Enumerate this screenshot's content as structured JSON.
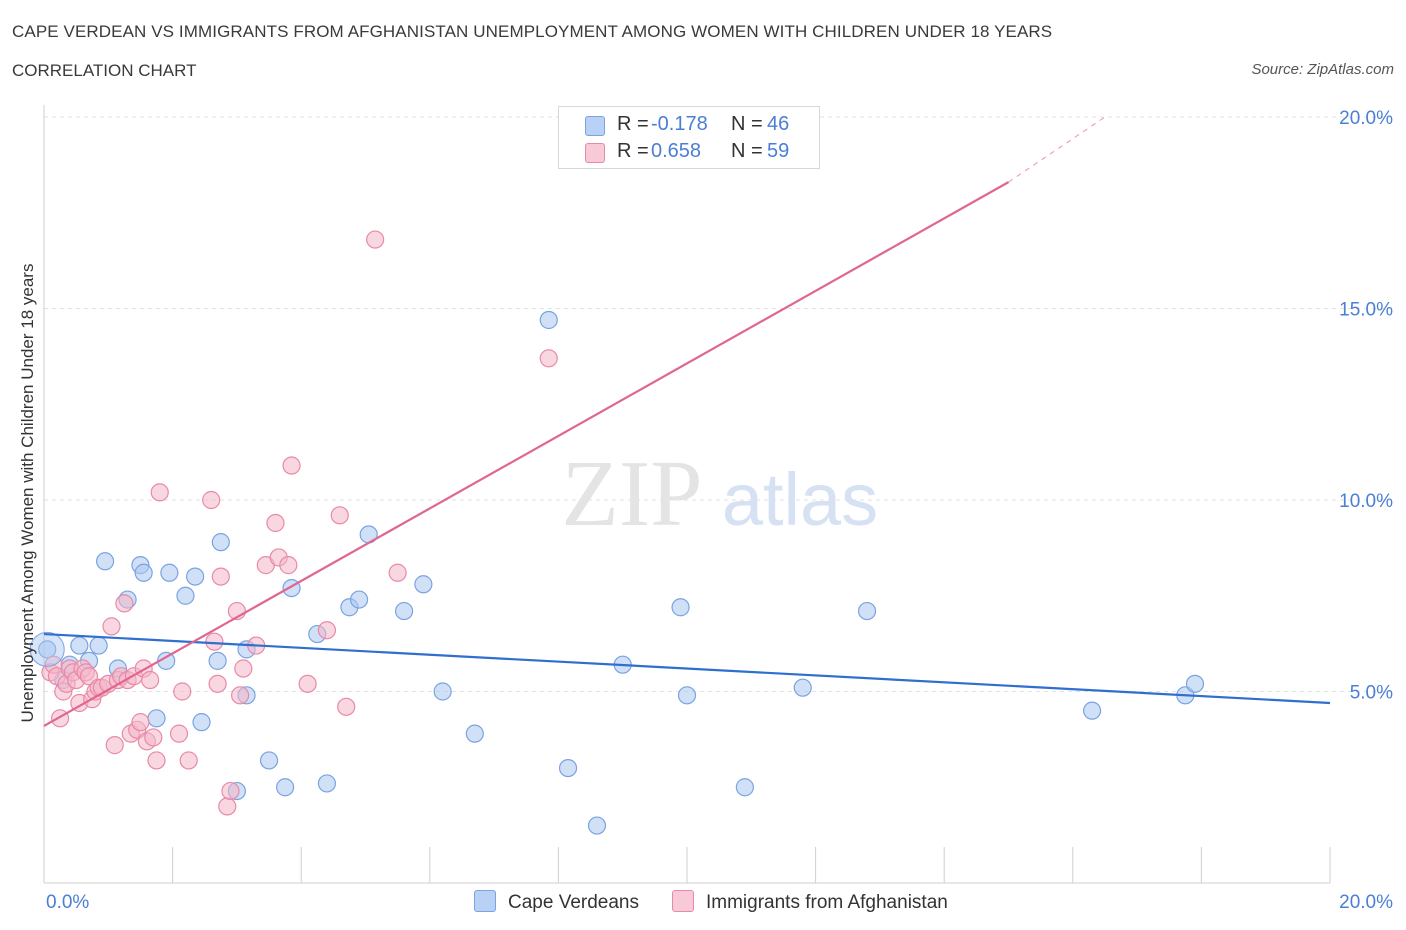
{
  "title": "CAPE VERDEAN VS IMMIGRANTS FROM AFGHANISTAN UNEMPLOYMENT AMONG WOMEN WITH CHILDREN UNDER 18 YEARS",
  "subtitle": "CORRELATION CHART",
  "source": "Source: ZipAtlas.com",
  "watermark": {
    "zip": "ZIP",
    "atlas": "atlas"
  },
  "legend": {
    "rows": [
      {
        "r_label": "R =",
        "r_value": "-0.178",
        "n_label": "N =",
        "n_value": "46"
      },
      {
        "r_label": "R =",
        "r_value": "0.658",
        "n_label": "N =",
        "n_value": "59"
      }
    ]
  },
  "bottom_legend": {
    "series1": "Cape Verdeans",
    "series2": "Immigrants from Afghanistan"
  },
  "colors": {
    "blue_fill": "#a9c6f0",
    "blue_stroke": "#7aa3e0",
    "blue_line": "#2f6fcf",
    "pink_fill": "#f4b6c8",
    "pink_stroke": "#e88aa7",
    "pink_line": "#e0668f",
    "axis_text": "#4a7fd4",
    "grid": "#e2e2e2"
  },
  "chart_data": {
    "type": "scatter",
    "title": "CAPE VERDEAN VS IMMIGRANTS FROM AFGHANISTAN UNEMPLOYMENT AMONG WOMEN WITH CHILDREN UNDER 18 YEARS",
    "xlabel": "",
    "ylabel": "Unemployment Among Women with Children Under 18 years",
    "xlim": [
      0,
      20
    ],
    "ylim": [
      0,
      20
    ],
    "x_tick_labels": [
      "0.0%",
      "20.0%"
    ],
    "y_ticks": [
      5,
      10,
      15,
      20
    ],
    "y_tick_labels": [
      "5.0%",
      "10.0%",
      "15.0%",
      "20.0%"
    ],
    "grid": true,
    "legend_position": "top-center",
    "series": [
      {
        "name": "Cape Verdeans",
        "color": "#a9c6f0",
        "points": [
          [
            0.05,
            6.1
          ],
          [
            0.3,
            5.3
          ],
          [
            0.4,
            5.7
          ],
          [
            0.55,
            6.2
          ],
          [
            0.7,
            5.8
          ],
          [
            0.85,
            6.2
          ],
          [
            0.95,
            8.4
          ],
          [
            1.15,
            5.6
          ],
          [
            1.3,
            7.4
          ],
          [
            1.5,
            8.3
          ],
          [
            1.55,
            8.1
          ],
          [
            1.75,
            4.3
          ],
          [
            1.9,
            5.8
          ],
          [
            1.95,
            8.1
          ],
          [
            2.2,
            7.5
          ],
          [
            2.35,
            8.0
          ],
          [
            2.45,
            4.2
          ],
          [
            2.7,
            5.8
          ],
          [
            2.75,
            8.9
          ],
          [
            3.0,
            2.4
          ],
          [
            3.15,
            6.1
          ],
          [
            3.15,
            4.9
          ],
          [
            3.5,
            3.2
          ],
          [
            3.75,
            2.5
          ],
          [
            3.85,
            7.7
          ],
          [
            4.25,
            6.5
          ],
          [
            4.4,
            2.6
          ],
          [
            4.75,
            7.2
          ],
          [
            4.9,
            7.4
          ],
          [
            5.05,
            9.1
          ],
          [
            5.6,
            7.1
          ],
          [
            5.9,
            7.8
          ],
          [
            6.2,
            5.0
          ],
          [
            6.7,
            3.9
          ],
          [
            7.85,
            14.7
          ],
          [
            8.15,
            3.0
          ],
          [
            8.6,
            1.5
          ],
          [
            9.0,
            5.7
          ],
          [
            9.9,
            7.2
          ],
          [
            10.0,
            4.9
          ],
          [
            10.9,
            2.5
          ],
          [
            11.8,
            5.1
          ],
          [
            12.8,
            7.1
          ],
          [
            16.3,
            4.5
          ],
          [
            17.75,
            4.9
          ],
          [
            17.9,
            5.2
          ]
        ]
      },
      {
        "name": "Immigrants from Afghanistan",
        "color": "#f4b6c8",
        "points": [
          [
            0.1,
            5.5
          ],
          [
            0.15,
            5.7
          ],
          [
            0.2,
            5.4
          ],
          [
            0.25,
            4.3
          ],
          [
            0.3,
            5.0
          ],
          [
            0.35,
            5.2
          ],
          [
            0.4,
            5.6
          ],
          [
            0.45,
            5.5
          ],
          [
            0.5,
            5.3
          ],
          [
            0.55,
            4.7
          ],
          [
            0.6,
            5.6
          ],
          [
            0.65,
            5.5
          ],
          [
            0.7,
            5.4
          ],
          [
            0.75,
            4.8
          ],
          [
            0.8,
            5.0
          ],
          [
            0.85,
            5.1
          ],
          [
            0.9,
            5.1
          ],
          [
            1.0,
            5.2
          ],
          [
            1.05,
            6.7
          ],
          [
            1.1,
            3.6
          ],
          [
            1.15,
            5.3
          ],
          [
            1.2,
            5.4
          ],
          [
            1.25,
            7.3
          ],
          [
            1.3,
            5.3
          ],
          [
            1.35,
            3.9
          ],
          [
            1.4,
            5.4
          ],
          [
            1.45,
            4.0
          ],
          [
            1.5,
            4.2
          ],
          [
            1.55,
            5.6
          ],
          [
            1.6,
            3.7
          ],
          [
            1.65,
            5.3
          ],
          [
            1.7,
            3.8
          ],
          [
            1.75,
            3.2
          ],
          [
            1.8,
            10.2
          ],
          [
            2.1,
            3.9
          ],
          [
            2.15,
            5.0
          ],
          [
            2.25,
            3.2
          ],
          [
            2.6,
            10.0
          ],
          [
            2.65,
            6.3
          ],
          [
            2.7,
            5.2
          ],
          [
            2.75,
            8.0
          ],
          [
            2.85,
            2.0
          ],
          [
            2.9,
            2.4
          ],
          [
            3.0,
            7.1
          ],
          [
            3.05,
            4.9
          ],
          [
            3.1,
            5.6
          ],
          [
            3.3,
            6.2
          ],
          [
            3.45,
            8.3
          ],
          [
            3.6,
            9.4
          ],
          [
            3.65,
            8.5
          ],
          [
            3.8,
            8.3
          ],
          [
            3.85,
            10.9
          ],
          [
            4.1,
            5.2
          ],
          [
            4.4,
            6.6
          ],
          [
            4.6,
            9.6
          ],
          [
            4.7,
            4.6
          ],
          [
            5.5,
            8.1
          ],
          [
            5.15,
            16.8
          ],
          [
            7.85,
            13.7
          ]
        ]
      }
    ],
    "trend_lines": [
      {
        "name": "Cape Verdeans",
        "x": [
          0,
          20
        ],
        "y": [
          6.5,
          4.7
        ],
        "color": "#2f6fcf"
      },
      {
        "name": "Immigrants from Afghanistan",
        "x": [
          0,
          15.0
        ],
        "y": [
          4.1,
          18.3
        ],
        "dashed_to": [
          16.5,
          20.0
        ],
        "color": "#e0668f"
      }
    ]
  }
}
